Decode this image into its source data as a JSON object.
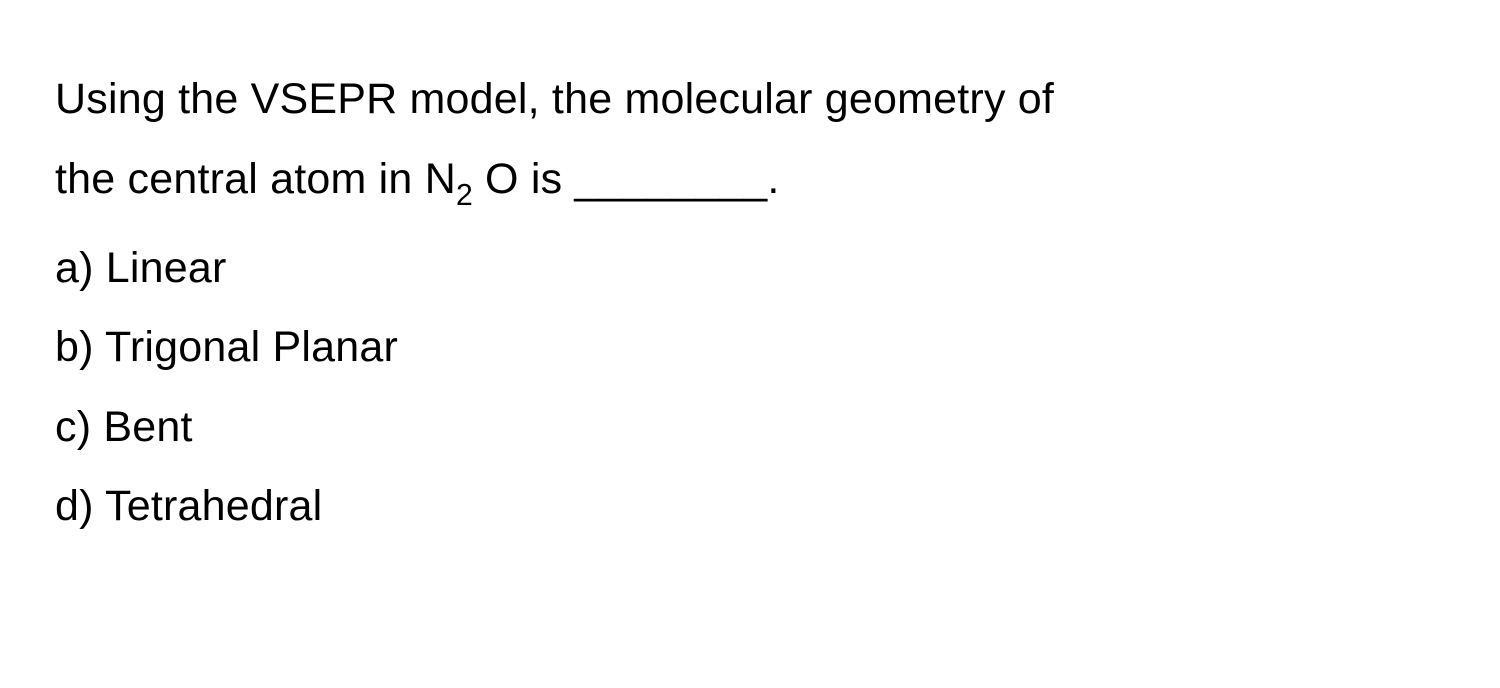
{
  "question": {
    "line1": "Using the VSEPR model, the molecular geometry of",
    "line2_part1": "the central atom in N",
    "subscript": "2",
    "line2_part2": " O is ________."
  },
  "options": {
    "a": "a) Linear",
    "b": "b) Trigonal Planar",
    "c": "c) Bent",
    "d": "d) Tetrahedral"
  },
  "styling": {
    "background_color": "#ffffff",
    "text_color": "#000000",
    "font_size": 43,
    "line_height": 1.85
  }
}
